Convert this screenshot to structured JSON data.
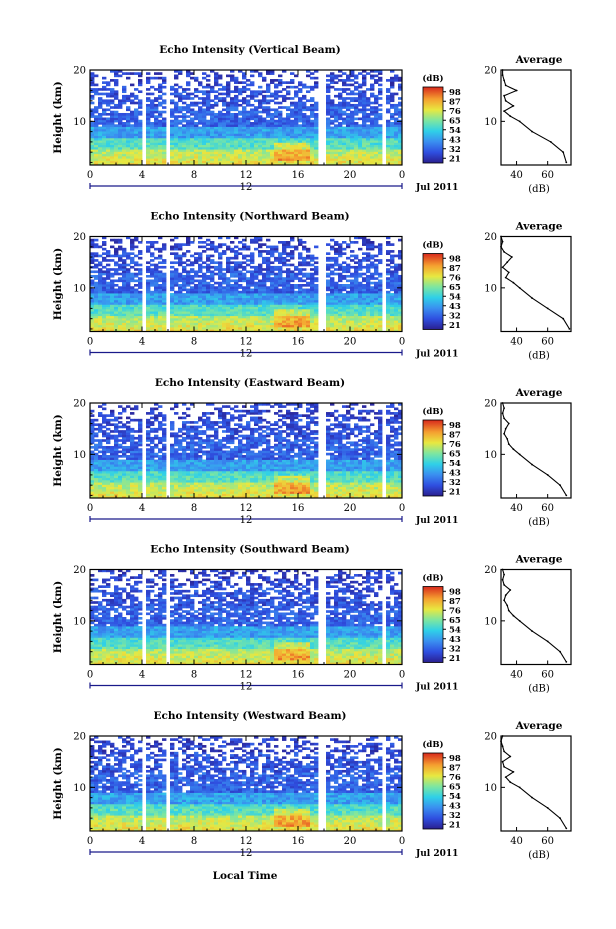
{
  "figure": {
    "xlabel_bottom": "Local Time",
    "date_label": "Jul 2011",
    "date_marker_label": "12",
    "panels": [
      {
        "title": "Echo Intensity (Vertical Beam)"
      },
      {
        "title": "Echo Intensity (Northward Beam)"
      },
      {
        "title": "Echo Intensity (Eastward Beam)"
      },
      {
        "title": "Echo Intensity (Southward Beam)"
      },
      {
        "title": "Echo Intensity (Westward Beam)"
      }
    ]
  },
  "chart_data": [
    {
      "type": "heatmap",
      "title": "Echo Intensity (Vertical Beam)",
      "xlabel": "",
      "ylabel": "Height (km)",
      "xlim": [
        0,
        24
      ],
      "ylim": [
        1.5,
        20
      ],
      "xticks": [
        "0",
        "4",
        "8",
        "12",
        "16",
        "20",
        "0"
      ],
      "yticks": [
        "10",
        "20"
      ],
      "colorbar": {
        "label": "(dB)",
        "ticks": [
          "21",
          "32",
          "43",
          "54",
          "65",
          "76",
          "87",
          "98"
        ],
        "range": [
          21,
          98
        ]
      },
      "gaps_hours": [
        [
          3.9,
          4.4
        ],
        [
          5.7,
          6.2
        ],
        [
          17.6,
          18.0
        ],
        [
          22.4,
          22.7
        ]
      ],
      "average_profile": {
        "title": "Average",
        "xlabel": "(dB)",
        "xticks": [
          "40",
          "60"
        ],
        "yticks": [
          "10",
          "20"
        ],
        "height_km": [
          2,
          4,
          6,
          8,
          10,
          11,
          12,
          13,
          14,
          15,
          16,
          17,
          18,
          19,
          20
        ],
        "echo_db": [
          72,
          70,
          62,
          50,
          42,
          36,
          32,
          38,
          33,
          32,
          40,
          33,
          32,
          31,
          31
        ]
      }
    },
    {
      "type": "heatmap",
      "title": "Echo Intensity (Northward Beam)",
      "xlabel": "",
      "ylabel": "Height (km)",
      "xlim": [
        0,
        24
      ],
      "ylim": [
        1.5,
        20
      ],
      "xticks": [
        "0",
        "4",
        "8",
        "12",
        "16",
        "20",
        "0"
      ],
      "yticks": [
        "10",
        "20"
      ],
      "colorbar": {
        "label": "(dB)",
        "ticks": [
          "21",
          "32",
          "43",
          "54",
          "65",
          "76",
          "87",
          "98"
        ],
        "range": [
          21,
          98
        ]
      },
      "gaps_hours": [
        [
          3.9,
          4.4
        ],
        [
          5.7,
          6.2
        ],
        [
          17.6,
          18.0
        ],
        [
          22.4,
          22.7
        ]
      ],
      "average_profile": {
        "title": "Average",
        "xlabel": "(dB)",
        "xticks": [
          "40",
          "60"
        ],
        "yticks": [
          "10",
          "20"
        ],
        "height_km": [
          2,
          4,
          6,
          8,
          10,
          11,
          12,
          13,
          14,
          15,
          16,
          17,
          18,
          19,
          20
        ],
        "echo_db": [
          74,
          70,
          60,
          50,
          42,
          38,
          33,
          35,
          31,
          34,
          37,
          32,
          30,
          31,
          30
        ]
      }
    },
    {
      "type": "heatmap",
      "title": "Echo Intensity (Eastward Beam)",
      "xlabel": "",
      "ylabel": "Height (km)",
      "xlim": [
        0,
        24
      ],
      "ylim": [
        1.5,
        20
      ],
      "xticks": [
        "0",
        "4",
        "8",
        "12",
        "16",
        "20",
        "0"
      ],
      "yticks": [
        "10",
        "20"
      ],
      "colorbar": {
        "label": "(dB)",
        "ticks": [
          "21",
          "32",
          "43",
          "54",
          "65",
          "76",
          "87",
          "98"
        ],
        "range": [
          21,
          98
        ]
      },
      "gaps_hours": [
        [
          3.9,
          4.4
        ],
        [
          5.7,
          6.2
        ],
        [
          17.6,
          18.0
        ],
        [
          22.4,
          22.7
        ]
      ],
      "average_profile": {
        "title": "Average",
        "xlabel": "(dB)",
        "xticks": [
          "40",
          "60"
        ],
        "yticks": [
          "10",
          "20"
        ],
        "height_km": [
          2,
          4,
          6,
          8,
          10,
          11,
          12,
          13,
          14,
          15,
          16,
          17,
          18,
          19,
          20
        ],
        "echo_db": [
          72,
          68,
          60,
          50,
          42,
          38,
          35,
          34,
          32,
          33,
          35,
          32,
          31,
          32,
          31
        ]
      }
    },
    {
      "type": "heatmap",
      "title": "Echo Intensity (Southward Beam)",
      "xlabel": "",
      "ylabel": "Height (km)",
      "xlim": [
        0,
        24
      ],
      "ylim": [
        1.5,
        20
      ],
      "xticks": [
        "0",
        "4",
        "8",
        "12",
        "16",
        "20",
        "0"
      ],
      "yticks": [
        "10",
        "20"
      ],
      "colorbar": {
        "label": "(dB)",
        "ticks": [
          "21",
          "32",
          "43",
          "54",
          "65",
          "76",
          "87",
          "98"
        ],
        "range": [
          21,
          98
        ]
      },
      "gaps_hours": [
        [
          3.9,
          4.4
        ],
        [
          5.7,
          6.2
        ],
        [
          17.6,
          18.0
        ],
        [
          22.4,
          22.7
        ]
      ],
      "average_profile": {
        "title": "Average",
        "xlabel": "(dB)",
        "xticks": [
          "40",
          "60"
        ],
        "yticks": [
          "10",
          "20"
        ],
        "height_km": [
          2,
          4,
          6,
          8,
          10,
          11,
          12,
          13,
          14,
          15,
          16,
          17,
          18,
          19,
          20
        ],
        "echo_db": [
          72,
          68,
          60,
          50,
          42,
          38,
          35,
          34,
          32,
          33,
          36,
          32,
          31,
          32,
          31
        ]
      }
    },
    {
      "type": "heatmap",
      "title": "Echo Intensity (Westward Beam)",
      "xlabel": "Local Time",
      "ylabel": "Height (km)",
      "xlim": [
        0,
        24
      ],
      "ylim": [
        1.5,
        20
      ],
      "xticks": [
        "0",
        "4",
        "8",
        "12",
        "16",
        "20",
        "0"
      ],
      "yticks": [
        "10",
        "20"
      ],
      "colorbar": {
        "label": "(dB)",
        "ticks": [
          "21",
          "32",
          "43",
          "54",
          "65",
          "76",
          "87",
          "98"
        ],
        "range": [
          21,
          98
        ]
      },
      "gaps_hours": [
        [
          3.9,
          4.4
        ],
        [
          5.7,
          6.2
        ],
        [
          17.6,
          18.0
        ],
        [
          22.4,
          22.7
        ]
      ],
      "average_profile": {
        "title": "Average",
        "xlabel": "(dB)",
        "xticks": [
          "40",
          "60"
        ],
        "yticks": [
          "10",
          "20"
        ],
        "height_km": [
          2,
          4,
          6,
          8,
          10,
          11,
          12,
          13,
          14,
          15,
          16,
          17,
          18,
          19,
          20
        ],
        "echo_db": [
          72,
          68,
          60,
          50,
          42,
          36,
          33,
          38,
          32,
          31,
          36,
          32,
          31,
          30,
          31
        ]
      }
    }
  ]
}
